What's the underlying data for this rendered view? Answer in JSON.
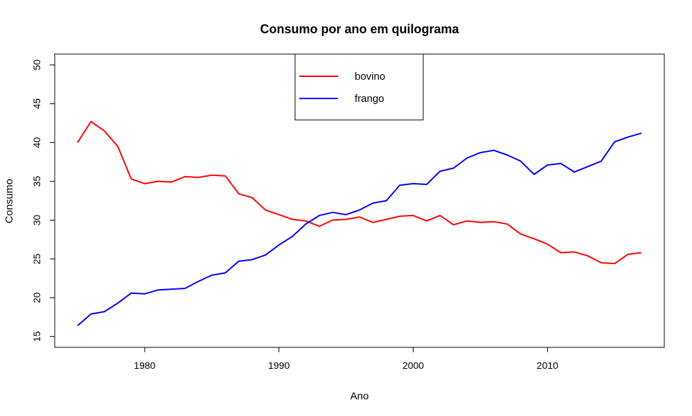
{
  "chart_data": {
    "type": "line",
    "title": "Consumo por ano em quilograma",
    "xlabel": "Ano",
    "ylabel": "Consumo",
    "xlim": [
      1973.3,
      2018.7
    ],
    "ylim": [
      13.6,
      51.4
    ],
    "xticks": [
      1980,
      1990,
      2000,
      2010
    ],
    "yticks": [
      15,
      20,
      25,
      30,
      35,
      40,
      45,
      50
    ],
    "grid": false,
    "legend_position": "top-center",
    "x": [
      1975,
      1976,
      1977,
      1978,
      1979,
      1980,
      1981,
      1982,
      1983,
      1984,
      1985,
      1986,
      1987,
      1988,
      1989,
      1990,
      1991,
      1992,
      1993,
      1994,
      1995,
      1996,
      1997,
      1998,
      1999,
      2000,
      2001,
      2002,
      2003,
      2004,
      2005,
      2006,
      2007,
      2008,
      2009,
      2010,
      2011,
      2012,
      2013,
      2014,
      2015,
      2016,
      2017
    ],
    "series": [
      {
        "name": "bovino",
        "color": "#ff0000",
        "values": [
          40.0,
          42.7,
          41.5,
          39.5,
          35.3,
          34.7,
          35.0,
          34.9,
          35.6,
          35.5,
          35.8,
          35.7,
          33.4,
          32.9,
          31.3,
          30.7,
          30.1,
          29.9,
          29.2,
          30.0,
          30.1,
          30.4,
          29.7,
          30.1,
          30.5,
          30.6,
          29.9,
          30.6,
          29.4,
          29.9,
          29.7,
          29.8,
          29.5,
          28.2,
          27.6,
          26.9,
          25.8,
          25.9,
          25.4,
          24.5,
          24.4,
          25.6,
          25.8
        ]
      },
      {
        "name": "frango",
        "color": "#0000ff",
        "values": [
          16.4,
          17.9,
          18.2,
          19.3,
          20.6,
          20.5,
          21.0,
          21.1,
          21.2,
          22.1,
          22.9,
          23.2,
          24.7,
          24.9,
          25.5,
          26.8,
          27.9,
          29.5,
          30.6,
          31.0,
          30.7,
          31.3,
          32.2,
          32.5,
          34.5,
          34.7,
          34.6,
          36.3,
          36.7,
          38.0,
          38.7,
          39.0,
          38.4,
          37.6,
          35.9,
          37.1,
          37.3,
          36.2,
          36.9,
          37.6,
          40.1,
          40.7,
          41.2
        ]
      }
    ]
  }
}
